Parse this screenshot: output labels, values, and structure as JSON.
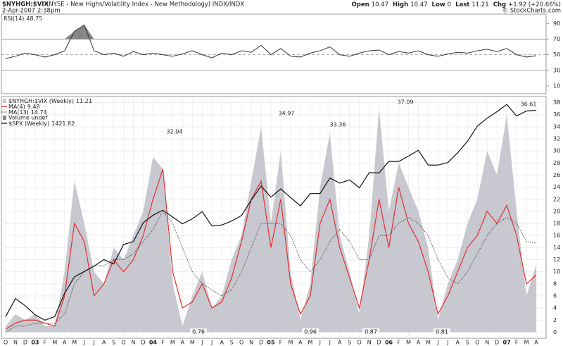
{
  "header": {
    "symbol": "$NYHGH:$VIX",
    "title": "(NYSE - New Highs/Volatility Index - New Methodology) INDX/INDX",
    "date": "2-Apr-2007 2:38pm",
    "quote": [
      {
        "label": "Open",
        "value": 10.47
      },
      {
        "label": "High",
        "value": 10.47
      },
      {
        "label": "Low",
        "value": 0.0
      },
      {
        "label": "Last",
        "value": 11.21
      }
    ],
    "change_label": "Chg",
    "change": "+1.92 (+20.66%)",
    "copyright": "© StockCharts.com"
  },
  "chart_data": [
    {
      "type": "line",
      "name": "RSI(14)",
      "last": 48.75,
      "color": "#333333",
      "ylim": [
        0,
        102
      ],
      "yticks": [
        10,
        30,
        50,
        70,
        90
      ],
      "levels": [
        30,
        50,
        70
      ],
      "overbought_fill": "#666666",
      "values": [
        45,
        48,
        52,
        50,
        47,
        50,
        55,
        80,
        88,
        55,
        50,
        52,
        48,
        54,
        50,
        52,
        50,
        48,
        51,
        55,
        50,
        46,
        52,
        50,
        55,
        53,
        62,
        50,
        58,
        48,
        47,
        52,
        55,
        60,
        50,
        48,
        52,
        55,
        56,
        50,
        54,
        52,
        55,
        50,
        48,
        51,
        53,
        52,
        55,
        57,
        54,
        58,
        50,
        47,
        48.75
      ]
    },
    {
      "type": "line",
      "grid": true,
      "categories": [
        "O",
        "N",
        "D",
        "03",
        "F",
        "M",
        "A",
        "M",
        "J",
        "J",
        "A",
        "S",
        "O",
        "N",
        "D",
        "04",
        "F",
        "M",
        "A",
        "M",
        "J",
        "J",
        "A",
        "S",
        "O",
        "N",
        "D",
        "05",
        "F",
        "M",
        "A",
        "M",
        "J",
        "J",
        "A",
        "S",
        "O",
        "N",
        "D",
        "06",
        "F",
        "M",
        "A",
        "M",
        "J",
        "J",
        "A",
        "S",
        "O",
        "N",
        "D",
        "07",
        "F",
        "M",
        "A"
      ],
      "ylim": [
        -1,
        39
      ],
      "yticks": [
        0,
        2,
        4,
        6,
        8,
        10,
        12,
        14,
        16,
        18,
        20,
        22,
        24,
        26,
        28,
        30,
        32,
        34,
        36,
        38
      ],
      "y2lim": [
        790,
        1460
      ],
      "volume_label": "Volume undef",
      "annotations": [
        32.04,
        34.97,
        33.36,
        37.09,
        36.61,
        0.76,
        0.96,
        0.87,
        0.81
      ],
      "series": [
        {
          "name": "$NYHGH:$VIX (Weekly)",
          "last": 11.21,
          "style": "area",
          "color": "#c8c8d0",
          "values": [
            1,
            3,
            2,
            3,
            1,
            1,
            10,
            25,
            18,
            10,
            8,
            14,
            12,
            16,
            20,
            29,
            27,
            8,
            1,
            6,
            10,
            4,
            6,
            12,
            16,
            25,
            34,
            18,
            30,
            10,
            2,
            8,
            24,
            33,
            16,
            10,
            3,
            16,
            37,
            20,
            28,
            24,
            20,
            14,
            2,
            8,
            12,
            18,
            22,
            30,
            26,
            36,
            20,
            6,
            11.21
          ]
        },
        {
          "name": "MA(4)",
          "last": 9.48,
          "style": "line",
          "color": "#e03030",
          "values": [
            0.5,
            1.5,
            2,
            2,
            1.5,
            1,
            6,
            18,
            15,
            6,
            8,
            12,
            10,
            12,
            16,
            22,
            27,
            10,
            4,
            5,
            8,
            4,
            5,
            9,
            15,
            22,
            25,
            14,
            22,
            8,
            3,
            6,
            18,
            22,
            14,
            9,
            4,
            12,
            22,
            14,
            24,
            18,
            15,
            10,
            3,
            6,
            10,
            14,
            16,
            20,
            18,
            21,
            16,
            8,
            9.48
          ]
        },
        {
          "name": "MA(13)",
          "last": 14.74,
          "style": "dotted",
          "color": "#444444",
          "values": [
            0,
            1,
            1,
            1.5,
            1.5,
            1.5,
            3,
            8,
            10,
            11,
            11,
            12,
            12,
            13,
            15,
            17,
            20,
            18,
            14,
            10,
            8,
            7,
            6,
            7,
            10,
            14,
            18,
            18,
            18,
            16,
            12,
            10,
            12,
            15,
            17,
            15,
            12,
            12,
            16,
            16,
            18,
            19,
            18,
            16,
            12,
            9,
            8,
            10,
            13,
            16,
            18,
            19,
            18,
            15,
            14.74
          ]
        },
        {
          "name": "$SPX (Weekly)",
          "last": 1421.82,
          "style": "line",
          "axis": "y2",
          "color": "#111111",
          "values": [
            850,
            900,
            880,
            855,
            840,
            850,
            915,
            960,
            975,
            990,
            1008,
            996,
            1050,
            1058,
            1110,
            1131,
            1145,
            1126,
            1107,
            1121,
            1141,
            1101,
            1104,
            1115,
            1130,
            1173,
            1212,
            1181,
            1204,
            1180,
            1157,
            1191,
            1191,
            1234,
            1220,
            1229,
            1207,
            1249,
            1248,
            1280,
            1280,
            1295,
            1311,
            1270,
            1270,
            1277,
            1304,
            1336,
            1378,
            1400,
            1418,
            1438,
            1406,
            1420,
            1421.82
          ]
        }
      ]
    }
  ]
}
